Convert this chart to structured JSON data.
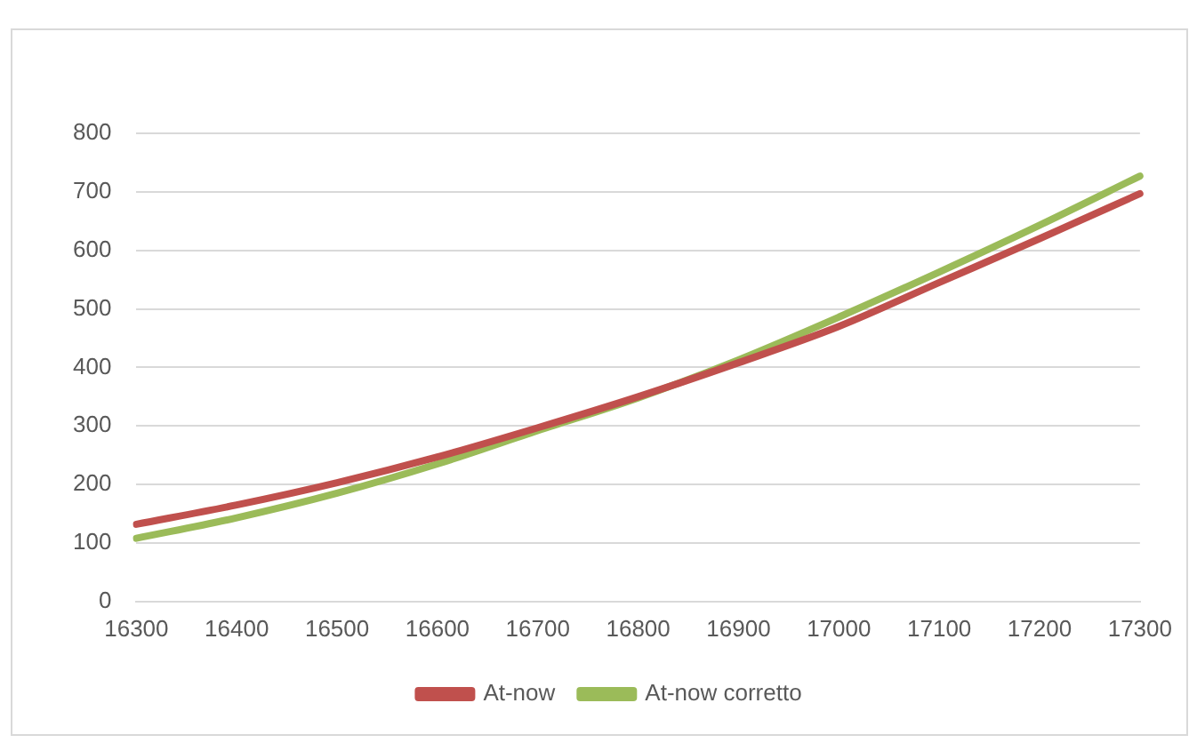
{
  "chart_data": {
    "type": "line",
    "categories": [
      "16300",
      "16400",
      "16500",
      "16600",
      "16700",
      "16800",
      "16900",
      "17000",
      "17100",
      "17200",
      "17300"
    ],
    "series": [
      {
        "name": "At-now",
        "color": "#c0504d",
        "values": [
          132,
          165,
          203,
          247,
          297,
          350,
          408,
          470,
          545,
          620,
          697
        ]
      },
      {
        "name": "At-now corretto",
        "color": "#9bbb59",
        "values": [
          108,
          143,
          185,
          235,
          292,
          348,
          413,
          486,
          563,
          643,
          727
        ]
      }
    ],
    "ylim": [
      0,
      800
    ],
    "yticks": [
      0,
      100,
      200,
      300,
      400,
      500,
      600,
      700,
      800
    ],
    "grid": "y",
    "legend": "bottom",
    "marker": "none",
    "line_style": "solid"
  }
}
